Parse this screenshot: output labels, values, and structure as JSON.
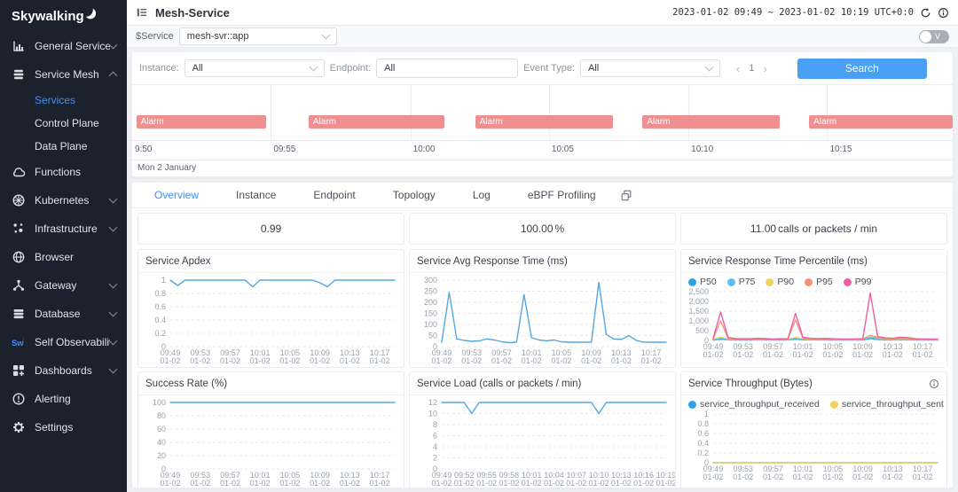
{
  "colors": {
    "accent": "#3f8ffe",
    "line_blue": "#53a8e2",
    "alarm": "#f08f8f",
    "search_button": "#4aa0f4",
    "sidebar_bg": "#1c222d"
  },
  "sidebar": {
    "logo_text": "Skywalking",
    "items": [
      {
        "id": "general-service",
        "label": "General Service",
        "icon": "bar-chart-icon",
        "chevron": "down"
      },
      {
        "id": "service-mesh",
        "label": "Service Mesh",
        "icon": "layers-icon",
        "chevron": "up",
        "children": [
          {
            "id": "services",
            "label": "Services",
            "active": true
          },
          {
            "id": "control-plane",
            "label": "Control Plane"
          },
          {
            "id": "data-plane",
            "label": "Data Plane"
          }
        ]
      },
      {
        "id": "functions",
        "label": "Functions",
        "icon": "cloud-icon"
      },
      {
        "id": "kubernetes",
        "label": "Kubernetes",
        "icon": "kubernetes-icon",
        "chevron": "down"
      },
      {
        "id": "infrastructure",
        "label": "Infrastructure",
        "icon": "infrastructure-icon",
        "chevron": "down"
      },
      {
        "id": "browser",
        "label": "Browser",
        "icon": "globe-icon"
      },
      {
        "id": "gateway",
        "label": "Gateway",
        "icon": "gateway-icon",
        "chevron": "down"
      },
      {
        "id": "database",
        "label": "Database",
        "icon": "database-icon",
        "chevron": "down"
      },
      {
        "id": "self-observability",
        "label": "Self Observability",
        "icon": "skywalking-icon",
        "chevron": "down"
      },
      {
        "id": "dashboards",
        "label": "Dashboards",
        "icon": "dashboards-icon",
        "chevron": "down"
      },
      {
        "id": "alerting",
        "label": "Alerting",
        "icon": "alert-icon"
      },
      {
        "id": "settings",
        "label": "Settings",
        "icon": "gear-icon"
      }
    ]
  },
  "header": {
    "title": "Mesh-Service",
    "time_range": "2023-01-02 09:49 ~ 2023-01-02 10:19 UTC+0:0"
  },
  "service_bar": {
    "label": "$Service",
    "value": "mesh-svr::app",
    "toggle_label": "V"
  },
  "filters": {
    "instance": {
      "label": "Instance:",
      "value": "All"
    },
    "endpoint": {
      "label": "Endpoint:",
      "value": "All"
    },
    "event_type": {
      "label": "Event Type:",
      "value": "All"
    },
    "page": "1",
    "search_label": "Search"
  },
  "timeline": {
    "date_label": "Mon 2 January",
    "ticks": [
      {
        "label": "9:50",
        "pos_pct": 0
      },
      {
        "label": "09:55",
        "pos_pct": 16.9
      },
      {
        "label": "10:00",
        "pos_pct": 33.9
      },
      {
        "label": "10:05",
        "pos_pct": 50.8
      },
      {
        "label": "10:10",
        "pos_pct": 67.8
      },
      {
        "label": "10:15",
        "pos_pct": 84.7
      }
    ],
    "bars": [
      {
        "label": "Alarm",
        "left_pct": 0.5,
        "width_pct": 15.8
      },
      {
        "label": "Alarm",
        "left_pct": 21.5,
        "width_pct": 16.6
      },
      {
        "label": "Alarm",
        "left_pct": 41.8,
        "width_pct": 16.8
      },
      {
        "label": "Alarm",
        "left_pct": 62.2,
        "width_pct": 16.7
      },
      {
        "label": "Alarm",
        "left_pct": 82.5,
        "width_pct": 17.5
      }
    ]
  },
  "tabs": {
    "items": [
      "Overview",
      "Instance",
      "Endpoint",
      "Topology",
      "Log",
      "eBPF Profiling"
    ],
    "active": "Overview"
  },
  "metrics": [
    {
      "value": "0.99",
      "unit": ""
    },
    {
      "value": "100.00",
      "unit": "%"
    },
    {
      "value": "11.00",
      "unit": "calls or packets / min"
    }
  ],
  "time_axis": {
    "times": [
      "09:49",
      "09:50",
      "09:51",
      "09:52",
      "09:53",
      "09:54",
      "09:55",
      "09:56",
      "09:57",
      "09:58",
      "09:59",
      "10:00",
      "10:01",
      "10:02",
      "10:03",
      "10:04",
      "10:05",
      "10:06",
      "10:07",
      "10:08",
      "10:09",
      "10:10",
      "10:11",
      "10:12",
      "10:13",
      "10:14",
      "10:15",
      "10:16",
      "10:17",
      "10:18",
      "10:19"
    ]
  },
  "chart_data": [
    {
      "type": "line",
      "title": "Service Apdex",
      "legend": false,
      "info_icon": false,
      "ylim": [
        0,
        1
      ],
      "y_ticks": [
        {
          "v": 0,
          "label": "0"
        },
        {
          "v": 0.2,
          "label": "0.2"
        },
        {
          "v": 0.4,
          "label": "0.4"
        },
        {
          "v": 0.6,
          "label": "0.6"
        },
        {
          "v": 0.8,
          "label": "0.8"
        },
        {
          "v": 1,
          "label": "1"
        }
      ],
      "x_tick_indices": [
        0,
        4,
        8,
        12,
        16,
        20,
        24,
        28
      ],
      "x_tick_labels": [
        "09:49",
        "09:53",
        "09:57",
        "10:01",
        "10:05",
        "10:09",
        "10:13",
        "10:17"
      ],
      "x_sub_label": "01-02",
      "series": [
        {
          "name": "apdex",
          "color": "#53a8e2",
          "values": [
            1,
            0.92,
            1,
            1,
            1,
            1,
            1,
            1,
            1,
            1,
            1,
            0.9,
            1,
            1,
            1,
            1,
            1,
            1,
            1,
            1,
            0.96,
            0.9,
            1,
            1,
            1,
            1,
            1,
            1,
            1,
            1,
            1
          ]
        }
      ]
    },
    {
      "type": "line",
      "title": "Service Avg Response Time (ms)",
      "legend": false,
      "info_icon": false,
      "ylim": [
        0,
        300
      ],
      "y_ticks": [
        {
          "v": 0,
          "label": "0"
        },
        {
          "v": 50,
          "label": "50"
        },
        {
          "v": 100,
          "label": "100"
        },
        {
          "v": 150,
          "label": "150"
        },
        {
          "v": 200,
          "label": "200"
        },
        {
          "v": 250,
          "label": "250"
        },
        {
          "v": 300,
          "label": "300"
        }
      ],
      "x_tick_indices": [
        0,
        4,
        8,
        12,
        16,
        20,
        24,
        28
      ],
      "x_tick_labels": [
        "09:49",
        "09:53",
        "09:57",
        "10:01",
        "10:05",
        "10:09",
        "10:13",
        "10:17"
      ],
      "x_sub_label": "01-02",
      "series": [
        {
          "name": "avg response time",
          "color": "#53a8e2",
          "values": [
            20,
            245,
            35,
            28,
            24,
            26,
            35,
            30,
            22,
            18,
            20,
            235,
            40,
            30,
            26,
            30,
            22,
            20,
            20,
            20,
            20,
            290,
            55,
            35,
            32,
            50,
            28,
            20,
            20,
            20,
            20
          ]
        }
      ]
    },
    {
      "type": "line",
      "title": "Service Response Time Percentile (ms)",
      "legend": true,
      "info_icon": false,
      "ylim": [
        0,
        2500
      ],
      "y_ticks": [
        {
          "v": 0,
          "label": "0"
        },
        {
          "v": 500,
          "label": "500"
        },
        {
          "v": 1000,
          "label": "1,000"
        },
        {
          "v": 1500,
          "label": "1,500"
        },
        {
          "v": 2000,
          "label": "2,000"
        },
        {
          "v": 2500,
          "label": "2,500"
        }
      ],
      "x_tick_indices": [
        0,
        4,
        8,
        12,
        16,
        20,
        24,
        28
      ],
      "x_tick_labels": [
        "09:49",
        "09:53",
        "09:57",
        "10:01",
        "10:05",
        "10:09",
        "10:13",
        "10:17"
      ],
      "x_sub_label": "01-02",
      "series": [
        {
          "name": "P50",
          "color": "#2ea3e6",
          "values": [
            25,
            70,
            35,
            25,
            24,
            24,
            30,
            26,
            21,
            24,
            27,
            65,
            38,
            30,
            27,
            28,
            24,
            22,
            20,
            21,
            24,
            95,
            50,
            33,
            30,
            40,
            36,
            24,
            21,
            20,
            20
          ]
        },
        {
          "name": "P75",
          "color": "#62bdf0",
          "values": [
            45,
            120,
            60,
            42,
            40,
            40,
            50,
            44,
            36,
            40,
            45,
            110,
            65,
            50,
            45,
            48,
            40,
            38,
            35,
            36,
            40,
            150,
            85,
            56,
            50,
            66,
            60,
            40,
            36,
            35,
            35
          ]
        },
        {
          "name": "P90",
          "color": "#f0d25f",
          "values": [
            70,
            170,
            85,
            60,
            58,
            58,
            72,
            62,
            50,
            58,
            64,
            160,
            95,
            72,
            64,
            68,
            58,
            54,
            50,
            52,
            56,
            250,
            120,
            80,
            72,
            95,
            88,
            58,
            52,
            50,
            50
          ]
        },
        {
          "name": "P95",
          "color": "#f5917a",
          "values": [
            90,
            1000,
            110,
            75,
            70,
            70,
            90,
            75,
            60,
            70,
            80,
            1050,
            120,
            90,
            80,
            85,
            70,
            65,
            60,
            62,
            70,
            260,
            150,
            100,
            90,
            120,
            110,
            70,
            62,
            60,
            60
          ]
        },
        {
          "name": "P99",
          "color": "#ec5fa2",
          "values": [
            120,
            1450,
            150,
            90,
            85,
            85,
            110,
            90,
            70,
            85,
            95,
            1380,
            160,
            110,
            95,
            105,
            85,
            75,
            70,
            75,
            85,
            2430,
            190,
            130,
            110,
            160,
            145,
            85,
            75,
            70,
            70
          ]
        }
      ]
    },
    {
      "type": "line",
      "title": "Success Rate (%)",
      "legend": false,
      "info_icon": false,
      "ylim": [
        0,
        100
      ],
      "y_ticks": [
        {
          "v": 0,
          "label": "0"
        },
        {
          "v": 20,
          "label": "20"
        },
        {
          "v": 40,
          "label": "40"
        },
        {
          "v": 60,
          "label": "60"
        },
        {
          "v": 80,
          "label": "80"
        },
        {
          "v": 100,
          "label": "100"
        }
      ],
      "x_tick_indices": [
        0,
        4,
        8,
        12,
        16,
        20,
        24,
        28
      ],
      "x_tick_labels": [
        "09:49",
        "09:53",
        "09:57",
        "10:01",
        "10:05",
        "10:09",
        "10:13",
        "10:17"
      ],
      "x_sub_label": "01-02",
      "series": [
        {
          "name": "success rate",
          "color": "#53a8e2",
          "values": [
            100,
            100,
            100,
            100,
            100,
            100,
            100,
            100,
            100,
            100,
            100,
            100,
            100,
            100,
            100,
            100,
            100,
            100,
            100,
            100,
            100,
            100,
            100,
            100,
            100,
            100,
            100,
            100,
            100,
            100,
            100
          ]
        }
      ]
    },
    {
      "type": "line",
      "title": "Service Load (calls or packets / min)",
      "legend": false,
      "info_icon": false,
      "ylim": [
        0,
        12
      ],
      "y_ticks": [
        {
          "v": 0,
          "label": "0"
        },
        {
          "v": 2,
          "label": "2"
        },
        {
          "v": 4,
          "label": "4"
        },
        {
          "v": 6,
          "label": "6"
        },
        {
          "v": 8,
          "label": "8"
        },
        {
          "v": 10,
          "label": "10"
        },
        {
          "v": 12,
          "label": "12"
        }
      ],
      "x_tick_indices": [
        0,
        3,
        6,
        9,
        12,
        15,
        18,
        21,
        24,
        27,
        30
      ],
      "x_tick_labels": [
        "09:49",
        "09:52",
        "09:55",
        "09:58",
        "10:01",
        "10:04",
        "10:07",
        "10:10",
        "10:13",
        "10:16",
        "10:19"
      ],
      "x_sub_label": "01-02",
      "series": [
        {
          "name": "service load",
          "color": "#53a8e2",
          "values": [
            12,
            12,
            12,
            12,
            10,
            12,
            12,
            12,
            12,
            12,
            12,
            12,
            12,
            12,
            12,
            12,
            12,
            12,
            12,
            12,
            12,
            10,
            12,
            12,
            12,
            12,
            12,
            12,
            12,
            12,
            12
          ]
        }
      ]
    },
    {
      "type": "line",
      "title": "Service Throughput (Bytes)",
      "legend": true,
      "info_icon": true,
      "ylim": [
        0,
        1
      ],
      "y_ticks": [
        {
          "v": 0,
          "label": "0"
        },
        {
          "v": 0.2,
          "label": "0.2"
        },
        {
          "v": 0.4,
          "label": "0.4"
        },
        {
          "v": 0.6,
          "label": "0.6"
        },
        {
          "v": 0.8,
          "label": "0.8"
        },
        {
          "v": 1,
          "label": "1"
        }
      ],
      "x_tick_indices": [
        0,
        4,
        8,
        12,
        16,
        20,
        24,
        28
      ],
      "x_tick_labels": [
        "09:49",
        "09:53",
        "09:57",
        "10:01",
        "10:05",
        "10:09",
        "10:13",
        "10:17"
      ],
      "x_sub_label": "01-02",
      "series": [
        {
          "name": "service_throughput_received",
          "color": "#2ea3e6",
          "values": [
            0,
            0,
            0,
            0,
            0,
            0,
            0,
            0,
            0,
            0,
            0,
            0,
            0,
            0,
            0,
            0,
            0,
            0,
            0,
            0,
            0,
            0,
            0,
            0,
            0,
            0,
            0,
            0,
            0,
            0,
            0
          ]
        },
        {
          "name": "service_throughput_sent",
          "color": "#f0d25f",
          "values": [
            0,
            0,
            0,
            0,
            0,
            0,
            0,
            0,
            0,
            0,
            0,
            0,
            0,
            0,
            0,
            0,
            0,
            0,
            0,
            0,
            0,
            0,
            0,
            0,
            0,
            0,
            0,
            0,
            0,
            0,
            0
          ]
        }
      ]
    }
  ]
}
